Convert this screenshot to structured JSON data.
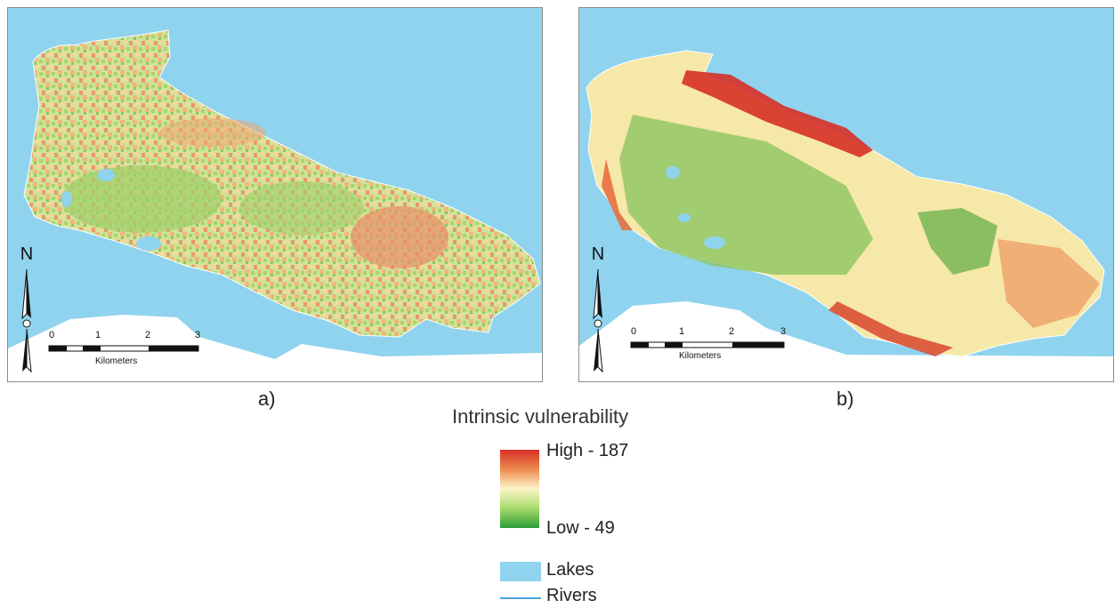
{
  "panels": [
    {
      "caption": "a)",
      "scale": {
        "ticks": [
          "0",
          "1",
          "2",
          "3"
        ],
        "unit": "Kilometers"
      },
      "north": "N"
    },
    {
      "caption": "b)",
      "scale": {
        "ticks": [
          "0",
          "1",
          "2",
          "3"
        ],
        "unit": "Kilometers"
      },
      "north": "N"
    }
  ],
  "legend": {
    "title": "Intrinsic vulnerability",
    "high_label": "High - 187",
    "low_label": "Low - 49",
    "lakes_label": "Lakes",
    "rivers_label": "Rivers"
  },
  "colors": {
    "water": "#8fd3ef",
    "high": "#d73027",
    "mid": "#fdf5c8",
    "low": "#2e9d3a",
    "river": "#4aa3d8"
  }
}
